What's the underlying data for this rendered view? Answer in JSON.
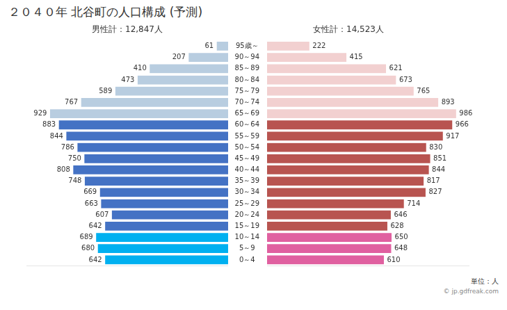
{
  "chart_data": {
    "type": "bar",
    "orientation": "horizontal",
    "title": "２０４０年 北谷町の人口構成 (予測)",
    "annotations": [
      "単位：人",
      "© jp.gdfreak.com"
    ],
    "categories": [
      "95歳～",
      "90～94",
      "85～89",
      "80～84",
      "75～79",
      "70～74",
      "65～69",
      "60～64",
      "55～59",
      "50～54",
      "45～49",
      "40～44",
      "35～39",
      "30～34",
      "25～29",
      "20～24",
      "15～19",
      "10～14",
      "5～9",
      "0～4"
    ],
    "series": [
      {
        "name": "男性計：12,847人",
        "colors": [
          "#b8cde0",
          "#b8cde0",
          "#b8cde0",
          "#b8cde0",
          "#b8cde0",
          "#b8cde0",
          "#b8cde0",
          "#4472c4",
          "#4472c4",
          "#4472c4",
          "#4472c4",
          "#4472c4",
          "#4472c4",
          "#4472c4",
          "#4472c4",
          "#4472c4",
          "#4472c4",
          "#00b0f0",
          "#00b0f0",
          "#00b0f0"
        ],
        "values": [
          61,
          207,
          410,
          473,
          589,
          767,
          929,
          883,
          844,
          786,
          750,
          808,
          748,
          669,
          663,
          607,
          642,
          689,
          680,
          642
        ]
      },
      {
        "name": "女性計：14,523人",
        "colors": [
          "#f2d0d0",
          "#f2d0d0",
          "#f2d0d0",
          "#f2d0d0",
          "#f2d0d0",
          "#f2d0d0",
          "#f2d0d0",
          "#b85450",
          "#b85450",
          "#b85450",
          "#b85450",
          "#b85450",
          "#b85450",
          "#b85450",
          "#b85450",
          "#b85450",
          "#b85450",
          "#e060a0",
          "#e060a0",
          "#e060a0"
        ],
        "values": [
          222,
          415,
          621,
          673,
          765,
          893,
          986,
          966,
          917,
          830,
          851,
          844,
          817,
          827,
          714,
          646,
          628,
          650,
          648,
          610
        ]
      }
    ],
    "xlim": [
      0,
      1050
    ],
    "tick_labels": "y",
    "grid": false,
    "data_labels": true
  }
}
